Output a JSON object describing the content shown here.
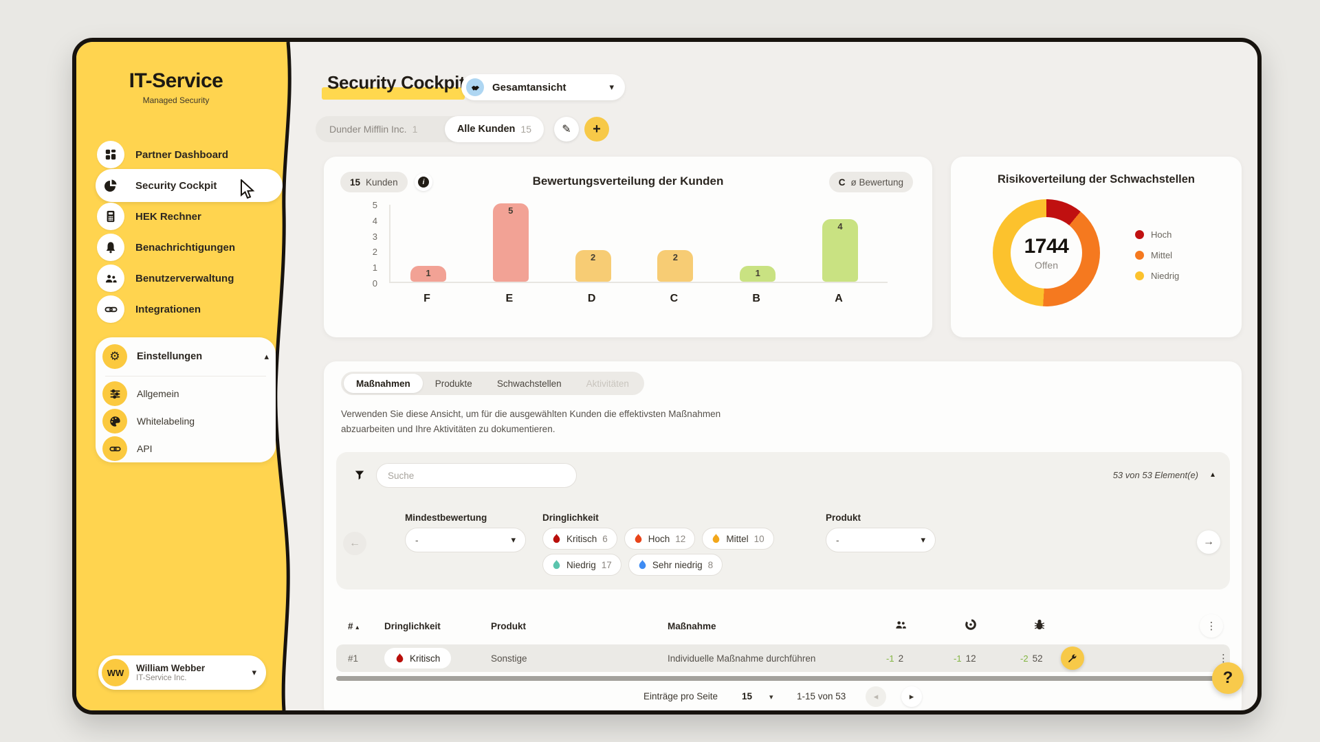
{
  "sidebar": {
    "brand": {
      "title": "IT-Service",
      "subtitle": "Managed Security"
    },
    "items": [
      {
        "label": "Partner Dashboard"
      },
      {
        "label": "Security Cockpit"
      },
      {
        "label": "HEK Rechner"
      },
      {
        "label": "Benachrichtigungen"
      },
      {
        "label": "Benutzerverwaltung"
      },
      {
        "label": "Integrationen"
      }
    ],
    "settings": {
      "label": "Einstellungen",
      "children": [
        {
          "label": "Allgemein"
        },
        {
          "label": "Whitelabeling"
        },
        {
          "label": "API"
        }
      ]
    },
    "user": {
      "initials": "WW",
      "name": "William Webber",
      "company": "IT-Service Inc."
    }
  },
  "header": {
    "title": "Security Cockpit",
    "view_selector": "Gesamtansicht",
    "customer_tabs": {
      "tab1": {
        "label": "Dunder Mifflin Inc.",
        "count": "1"
      },
      "tab2": {
        "label": "Alle Kunden",
        "count": "15"
      }
    }
  },
  "ratings_card": {
    "customers_chip": {
      "count": "15",
      "label": "Kunden"
    },
    "title": "Bewertungsverteilung der Kunden",
    "avg_chip": {
      "grade": "C",
      "label": "ø Bewertung"
    }
  },
  "risk_card": {
    "title": "Risikoverteilung der Schwachstellen",
    "center_value": "1744",
    "center_label": "Offen"
  },
  "chart_data": [
    {
      "type": "bar",
      "title": "Bewertungsverteilung der Kunden",
      "categories": [
        "F",
        "E",
        "D",
        "C",
        "B",
        "A"
      ],
      "values": [
        1,
        5,
        2,
        2,
        1,
        4
      ],
      "colors": [
        "#f2a295",
        "#f2a295",
        "#f7cc74",
        "#f7cc74",
        "#c9e282",
        "#c9e282"
      ],
      "ylim": [
        0,
        5
      ],
      "yticks": [
        0,
        1,
        2,
        3,
        4,
        5
      ],
      "xlabel": "",
      "ylabel": ""
    },
    {
      "type": "pie",
      "subtype": "donut",
      "title": "Risikoverteilung der Schwachstellen",
      "labels": [
        "Hoch",
        "Mittel",
        "Niedrig"
      ],
      "values_pct": [
        11,
        40,
        49
      ],
      "colors": [
        "#c01010",
        "#f5791f",
        "#fcc22d"
      ],
      "center_value": "1744",
      "center_label": "Offen",
      "legend_position": "right"
    }
  ],
  "section": {
    "tabs": [
      {
        "label": "Maßnahmen",
        "state": "active"
      },
      {
        "label": "Produkte",
        "state": "normal"
      },
      {
        "label": "Schwachstellen",
        "state": "normal"
      },
      {
        "label": "Aktivitäten",
        "state": "disabled"
      }
    ],
    "description": "Verwenden Sie diese Ansicht, um für die ausgewählten Kunden die effektivsten Maßnahmen abzuarbeiten und Ihre Aktivitäten zu dokumentieren."
  },
  "filters": {
    "search_placeholder": "Suche",
    "result_count": "53 von 53 Element(e)",
    "mindestbewertung": {
      "label": "Mindestbewertung",
      "value": "-"
    },
    "dringlichkeit": {
      "label": "Dringlichkeit",
      "chips": [
        {
          "label": "Kritisch",
          "count": "6",
          "color": "#b90f0b"
        },
        {
          "label": "Hoch",
          "count": "12",
          "color": "#e8441a"
        },
        {
          "label": "Mittel",
          "count": "10",
          "color": "#f2a71b"
        },
        {
          "label": "Niedrig",
          "count": "17",
          "color": "#5bc4ad"
        },
        {
          "label": "Sehr niedrig",
          "count": "8",
          "color": "#3f8cf3"
        }
      ]
    },
    "produkt": {
      "label": "Produkt",
      "value": "-"
    }
  },
  "table": {
    "columns": {
      "id": "#",
      "dringlichkeit": "Dringlichkeit",
      "produkt": "Produkt",
      "massnahme": "Maßnahme"
    },
    "row": {
      "id": "#1",
      "dringlichkeit": "Kritisch",
      "produkt": "Sonstige",
      "massnahme": "Individuelle Maßnahme durchführen",
      "kunden": {
        "delta": "-1",
        "value": "2"
      },
      "produkte": {
        "delta": "-1",
        "value": "12"
      },
      "schwachstellen": {
        "delta": "-2",
        "value": "52"
      }
    }
  },
  "pagination": {
    "label": "Einträge pro Seite",
    "page_size": "15",
    "range": "1-15 von 53"
  },
  "help_label": "?"
}
